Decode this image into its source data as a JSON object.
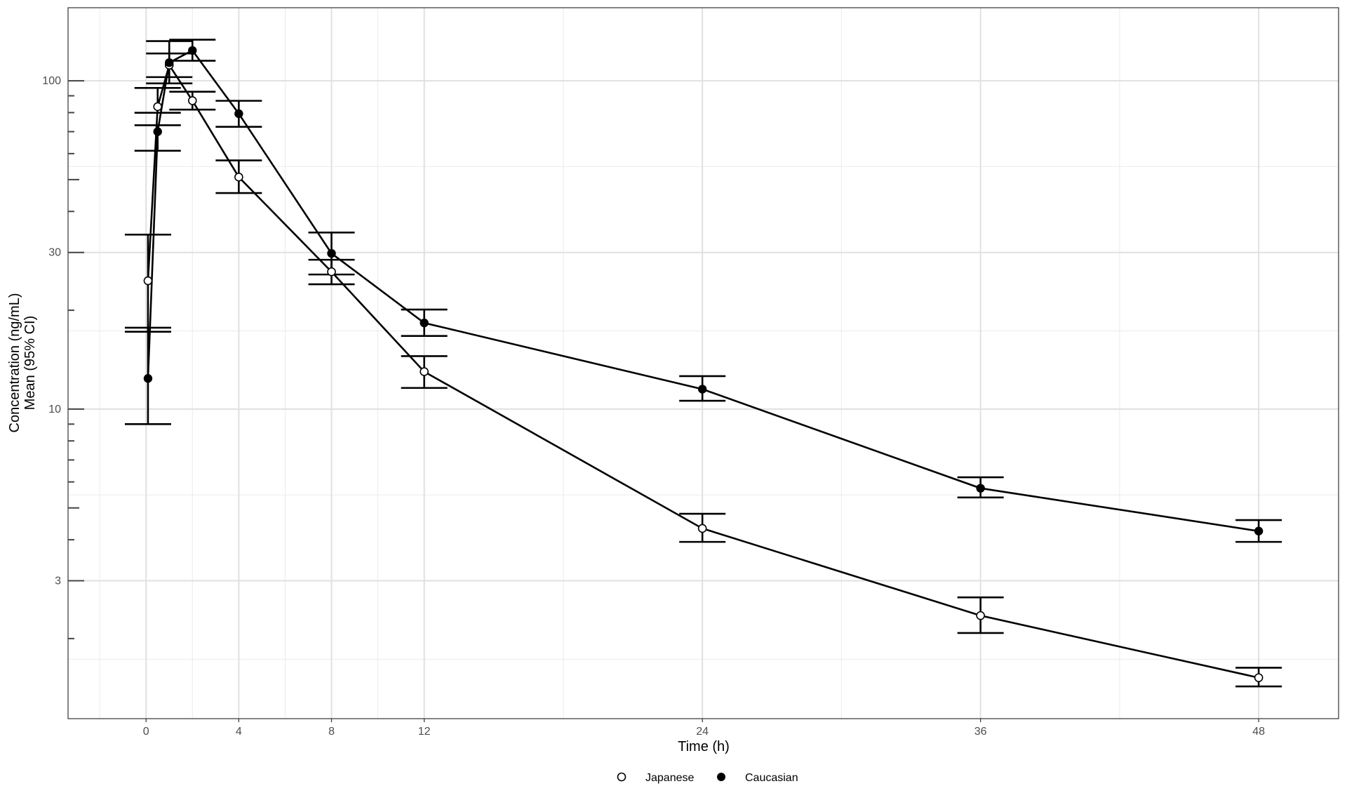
{
  "chart_data": {
    "type": "line",
    "title": "",
    "xlabel": "Time (h)",
    "ylabel_line1": "Concentration (ng/mL)",
    "ylabel_line2": "Mean (95% CI)",
    "yscale": "log10",
    "xlim": [
      -3.4,
      51.4
    ],
    "ylim": [
      1.14,
      167
    ],
    "x_ticks": [
      0,
      4,
      8,
      12,
      24,
      36,
      48
    ],
    "x_tick_labels": [
      "0",
      "4",
      "8",
      "12",
      "24",
      "36",
      "48"
    ],
    "x_minor_grid": [
      -2,
      2,
      6,
      10,
      18,
      30,
      42
    ],
    "y_ticks": [
      3,
      10,
      30,
      100
    ],
    "y_tick_labels": [
      "3",
      "10",
      "30",
      "100"
    ],
    "y_minor_grid": [
      1.73,
      5.48,
      17.3,
      54.8
    ],
    "y_logticks": [
      2,
      4,
      5,
      6,
      7,
      8,
      9,
      20,
      40,
      50,
      60,
      70,
      80,
      90
    ],
    "grid": true,
    "legend_position": "bottom",
    "series": [
      {
        "name": "Japanese",
        "marker": "open-circle",
        "x": [
          0.083,
          0.5,
          1,
          2,
          4,
          8,
          12,
          24,
          36,
          48
        ],
        "y": [
          24.6,
          83.4,
          111.6,
          87.0,
          50.9,
          26.2,
          13.0,
          4.33,
          2.35,
          1.52
        ],
        "lower": [
          17.2,
          79.9,
          102.6,
          81.7,
          45.5,
          24.0,
          11.6,
          3.94,
          2.08,
          1.43
        ],
        "upper": [
          34.0,
          95.1,
          121.1,
          92.6,
          57.2,
          28.5,
          14.5,
          4.8,
          2.67,
          1.63
        ]
      },
      {
        "name": "Caucasian",
        "marker": "filled-circle",
        "x": [
          0.083,
          0.5,
          1,
          2,
          4,
          8,
          12,
          24,
          36,
          48
        ],
        "y": [
          12.4,
          70.0,
          113.6,
          123.7,
          79.4,
          29.8,
          18.3,
          11.5,
          5.74,
          4.25
        ],
        "lower": [
          9.0,
          61.2,
          98.2,
          115.1,
          72.4,
          25.7,
          16.7,
          10.6,
          5.38,
          3.94
        ],
        "upper": [
          17.7,
          73.2,
          132.1,
          133.4,
          86.9,
          34.5,
          20.1,
          12.6,
          6.2,
          4.59
        ]
      }
    ]
  }
}
